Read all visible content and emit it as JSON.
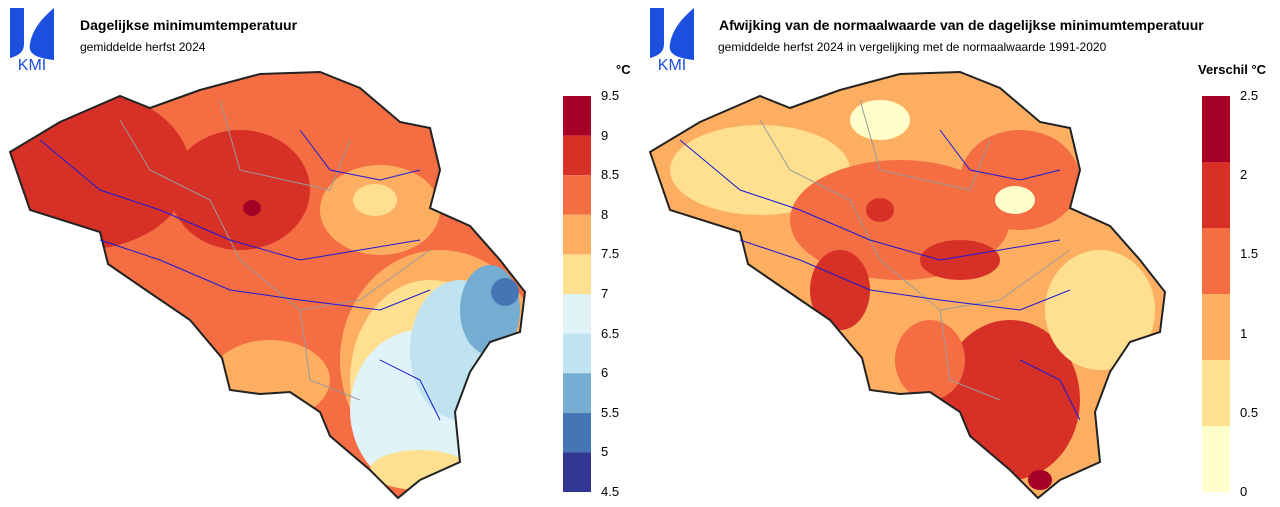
{
  "logo": {
    "text": "KMI",
    "color": "#1a4fe0"
  },
  "panels": [
    {
      "title": "Dagelijkse minimumtemperatuur",
      "subtitle": "gemiddelde herfst 2024",
      "unit": "°C",
      "legend": {
        "ticks": [
          "9.5",
          "9",
          "8.5",
          "8",
          "7.5",
          "7",
          "6.5",
          "6",
          "5.5",
          "5",
          "4.5"
        ],
        "colors": [
          "#a50026",
          "#d73027",
          "#f46d43",
          "#fdae61",
          "#fee090",
          "#e0f3f8",
          "#bfe3f0",
          "#74add1",
          "#4575b4",
          "#313695"
        ]
      }
    },
    {
      "title": "Afwijking van de normaalwaarde van de dagelijkse minimumtemperatuur",
      "subtitle": "gemiddelde herfst 2024 in vergelijking met de normaalwaarde 1991-2020",
      "unit": "Verschil °C",
      "legend": {
        "ticks": [
          "2.5",
          "2",
          "1.5",
          "1",
          "0.5",
          "0"
        ],
        "colors": [
          "#a50026",
          "#d73027",
          "#f46d43",
          "#fdae61",
          "#fee090",
          "#ffffcc"
        ]
      }
    }
  ]
}
